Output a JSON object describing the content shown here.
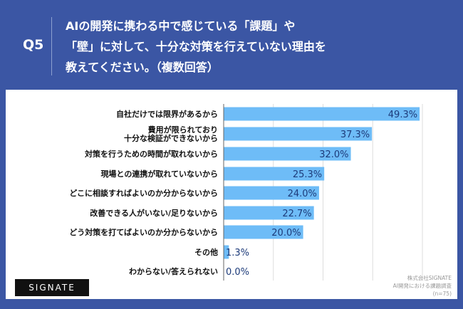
{
  "header": {
    "question_no": "Q5",
    "question": "AIの開発に携わる中で感じている「課題」や\n「壁」に対して、十分な対策を行えていない理由を\n教えてください。（複数回答）"
  },
  "chart_data": {
    "type": "bar",
    "orientation": "horizontal",
    "xlim": [
      0,
      50
    ],
    "grid": true,
    "bar_color": "#6ebcf7",
    "categories": [
      "自社だけでは限界があるから",
      "費用が限られており\n十分な検証ができないから",
      "対策を行うための時間が取れないから",
      "現場との連携が取れていないから",
      "どこに相談すればよいのか分からないから",
      "改善できる人がいない/足りないから",
      "どう対策を打てばよいのか分からないから",
      "その他",
      "わからない/答えられない"
    ],
    "values": [
      49.3,
      37.3,
      32.0,
      25.3,
      24.0,
      22.7,
      20.0,
      1.3,
      0.0
    ],
    "labels": [
      "49.3%",
      "37.3%",
      "32.0%",
      "25.3%",
      "24.0%",
      "22.7%",
      "20.0%",
      "1.3%",
      "0.0%"
    ]
  },
  "footer": {
    "logo": "SIGNATE",
    "source_lines": [
      "株式会社SIGNATE",
      "AI開発における課題調査",
      "(n=75)"
    ]
  }
}
